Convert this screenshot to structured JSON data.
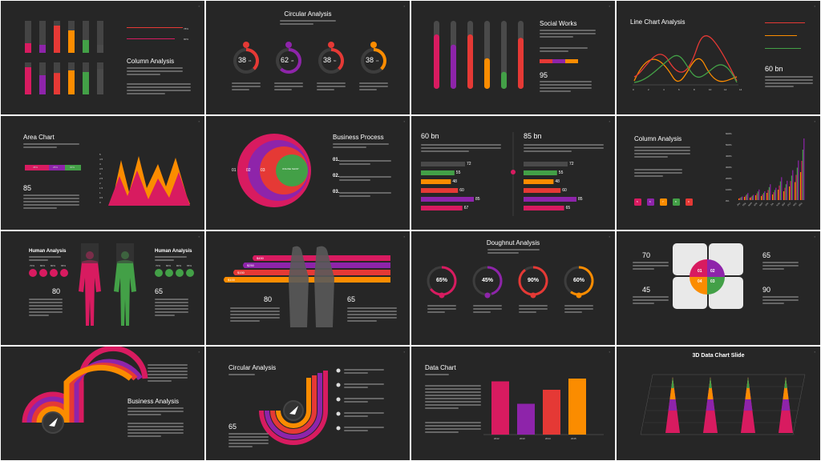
{
  "colors": {
    "red": "#e53935",
    "magenta": "#d81b60",
    "purple": "#8e24aa",
    "orange": "#fb8c00",
    "amber": "#f9a825",
    "green": "#43a047",
    "gray": "#4a4a4a",
    "bg": "#262626"
  },
  "slides": {
    "column1": {
      "title": "Column Analysis",
      "bar_tops": [
        30,
        25,
        85,
        70,
        40,
        25
      ],
      "bar_bottoms": [
        85,
        60,
        67,
        75,
        70,
        79
      ],
      "progress_values": [
        "78%",
        "90%"
      ]
    },
    "circular1": {
      "title": "Circular Analysis",
      "gauges": [
        {
          "main": "38",
          "small": "15",
          "icon": "pin-icon",
          "fraction": 0.38
        },
        {
          "main": "62",
          "small": "08",
          "icon": "eye-icon",
          "fraction": 0.62
        },
        {
          "main": "38",
          "small": "50",
          "icon": "plane-icon",
          "fraction": 0.38
        },
        {
          "main": "38",
          "small": "15",
          "icon": "lock-icon",
          "fraction": 0.38
        }
      ]
    },
    "social": {
      "title": "Social Works",
      "big": "95",
      "bars": [
        0.8,
        0.65,
        0.8,
        0.45,
        0.25,
        0.75
      ]
    },
    "line": {
      "title": "Line Chart Analysis",
      "big": "60 bn",
      "ticks": [
        "0",
        "2",
        "4",
        "6",
        "8",
        "10",
        "12",
        "14"
      ]
    },
    "area": {
      "title": "Area Chart",
      "big": "85",
      "segments": [
        "45%",
        "25%",
        "30%"
      ],
      "yticks": [
        "5",
        "4.5",
        "4",
        "3.5",
        "3",
        "2.5",
        "2",
        "1.5",
        "1",
        "0.5",
        "0"
      ]
    },
    "business1": {
      "title": "Business Process",
      "rings": [
        "01",
        "02",
        "03"
      ],
      "center": "ONLINE SHOP",
      "items": [
        "01.",
        "02.",
        "03."
      ]
    },
    "hbars": {
      "left_big": "60 bn",
      "right_big": "85 bn",
      "left_values": [
        "72",
        "55",
        "48",
        "60",
        "85",
        "67"
      ],
      "right_values": [
        "72",
        "55",
        "48",
        "60",
        "85",
        "65"
      ]
    },
    "column2": {
      "title": "Column Analysis",
      "yticks": [
        "600%",
        "500%",
        "400%",
        "300%",
        "200%",
        "100%",
        "0%"
      ],
      "months": [
        "JAN",
        "FEB",
        "MAR",
        "APR",
        "MAY",
        "JUN",
        "JUL",
        "AUG",
        "SEP",
        "OCT",
        "NOV",
        "DEC"
      ],
      "squares": [
        "5",
        "6",
        "7",
        "8",
        "9"
      ]
    },
    "human": {
      "title_left": "Human Analysis",
      "title_right": "Human Analysis",
      "left_big": "80",
      "right_big": "65",
      "left_pct": [
        "70%",
        "80%",
        "80%",
        "65%"
      ],
      "right_pct": [
        "70%",
        "80%",
        "80%",
        "65%"
      ]
    },
    "stacked": {
      "bars": [
        "$100",
        "$150",
        "$250",
        "$450"
      ],
      "left_big": "80",
      "right_big": "65"
    },
    "doughnut": {
      "title": "Doughnut Analysis",
      "rings": [
        {
          "label": "65%",
          "fraction": 0.65
        },
        {
          "label": "45%",
          "fraction": 0.45
        },
        {
          "label": "90%",
          "fraction": 0.9
        },
        {
          "label": "60%",
          "fraction": 0.6
        }
      ]
    },
    "quad": {
      "nums": [
        "01",
        "02",
        "03",
        "04"
      ],
      "left": [
        "70",
        "45"
      ],
      "right": [
        "65",
        "90"
      ]
    },
    "business2": {
      "title": "Business Analysis"
    },
    "circular2": {
      "title": "Circular Analysis",
      "big": "65"
    },
    "datachart": {
      "title": "Data Chart",
      "years": [
        "2012",
        "2013",
        "2014",
        "2015"
      ],
      "values": [
        0.95,
        0.55,
        0.8,
        1.0
      ]
    },
    "chart3d": {
      "title": "3D Data Chart Slide"
    }
  }
}
